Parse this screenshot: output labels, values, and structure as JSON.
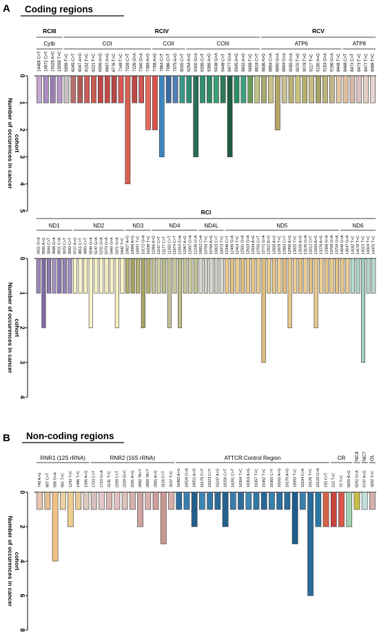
{
  "figure": {
    "panel_a_letter": "A",
    "panel_a_title": "Coding regions",
    "panel_b_letter": "B",
    "panel_b_title": "Non-coding regions",
    "ylabel_line1": "Number of occurences in cancer",
    "ylabel_line2": "cohort"
  },
  "chart_data": [
    {
      "type": "bar",
      "title": "Coding regions",
      "subtitle": "RCIII, RCIV, RCV",
      "ylabel": "Number of occurences in cancer cohort",
      "ylim": [
        0,
        5
      ],
      "y_direction": "down",
      "yticks": [
        0,
        1,
        2,
        3,
        4,
        5
      ],
      "complexes": [
        {
          "name": "RCIII",
          "from": 0,
          "to": 4
        },
        {
          "name": "RCIV",
          "from": 4,
          "to": 33
        },
        {
          "name": "RCV",
          "from": 33,
          "to": 50
        }
      ],
      "genes": [
        {
          "name": "Cytb",
          "from": 0,
          "to": 4
        },
        {
          "name": "COI",
          "from": 4,
          "to": 17
        },
        {
          "name": "COII",
          "from": 17,
          "to": 22
        },
        {
          "name": "COIII",
          "from": 22,
          "to": 33
        },
        {
          "name": "ATP6",
          "from": 33,
          "to": 45
        },
        {
          "name": "ATP8",
          "from": 45,
          "to": 50
        }
      ],
      "categories": [
        "14466 C>T",
        "14872 C>T",
        "15028 A>C",
        "15098 T>C",
        "5999 T>C",
        "6045 C>T",
        "6047 A>G",
        "6152 T>C",
        "6221 T>C",
        "6599 A>G",
        "6647 A>G",
        "6776 T>C",
        "7148 T>C",
        "7028 C>T",
        "7226 G>A",
        "7340 G>A",
        "7389 A>G",
        "7768 A>G",
        "7864 C>T",
        "7986 C>T",
        "7975 A>G",
        "8005 C>T",
        "9254 A>G",
        "9300 G>A",
        "9335 C>T",
        "9389 A>G",
        "9438 G>A",
        "9448 C>T",
        "9477 G>A",
        "9545 A>G",
        "9632 A>G",
        "9698 T>C",
        "8818 C>T",
        "8836 A>G",
        "8894 C>A",
        "8950 G>A",
        "8994 G>A",
        "9055 G>A",
        "9070 T>G",
        "9078 T>G",
        "9117 T>C",
        "9150 A>G",
        "9163 G>A",
        "9196 G>A",
        "8448 T>C",
        "8468 C>T",
        "8472 C>T",
        "8473 T>C",
        "8477 T>C",
        "8488 T>C"
      ],
      "values": [
        1,
        1,
        1,
        1,
        1,
        1,
        1,
        1,
        1,
        1,
        1,
        1,
        1,
        4,
        1,
        1,
        2,
        2,
        3,
        1,
        1,
        1,
        1,
        3,
        1,
        1,
        1,
        1,
        3,
        1,
        1,
        1,
        1,
        1,
        1,
        2,
        1,
        1,
        1,
        1,
        1,
        1,
        1,
        1,
        1,
        1,
        1,
        1,
        1,
        1
      ],
      "colors": [
        "#c5a6d1",
        "#a98bc0",
        "#9b7fb3",
        "#b595c4",
        "#c9c2c2",
        "#b76f6a",
        "#ad5c57",
        "#cc5c58",
        "#c75e55",
        "#c04545",
        "#c44a4a",
        "#b34747",
        "#d95656",
        "#d86252",
        "#c04848",
        "#cc5655",
        "#e26c5f",
        "#d8504a",
        "#3d86bf",
        "#3a6aa0",
        "#5080b8",
        "#3a9a88",
        "#2e8c76",
        "#2a6e56",
        "#31916f",
        "#2f8a65",
        "#3aa075",
        "#2c7a5a",
        "#1f5c42",
        "#2b8e66",
        "#3da07a",
        "#6b9a5a",
        "#bfc48a",
        "#a8a873",
        "#c7c287",
        "#b3a567",
        "#c7c090",
        "#b8b07a",
        "#c8c27d",
        "#b6ae6f",
        "#c5bb82",
        "#a9a168",
        "#bcb47a",
        "#c0b68a",
        "#e2c6a8",
        "#e0c0a0",
        "#d6b8a8",
        "#d9c2c0",
        "#e4cfc7",
        "#e6d6d0"
      ]
    },
    {
      "type": "bar",
      "subtitle": "RCI",
      "ylabel": "Number of occurences in cancer cohort",
      "ylim": [
        0,
        4
      ],
      "y_direction": "down",
      "yticks": [
        0,
        1,
        2,
        3,
        4
      ],
      "complexes": [
        {
          "name": "RCI",
          "from": 0,
          "to": 65
        }
      ],
      "genes": [
        {
          "name": "ND1",
          "from": 0,
          "to": 7
        },
        {
          "name": "ND2",
          "from": 7,
          "to": 17
        },
        {
          "name": "ND3",
          "from": 17,
          "to": 22
        },
        {
          "name": "ND4",
          "from": 22,
          "to": 31
        },
        {
          "name": "ND4L",
          "from": 31,
          "to": 36
        },
        {
          "name": "ND5",
          "from": 36,
          "to": 58
        },
        {
          "name": "ND6",
          "from": 58,
          "to": 65
        }
      ],
      "categories": [
        "3421 G>A",
        "3505 A>G",
        "3594 C>T",
        "3666 G>A",
        "3921 C>A",
        "3970 C>T",
        "3992 C>T",
        "4727 A>G",
        "4811 C>T",
        "4883 C>T",
        "5046 G>A",
        "5147 G>A",
        "5231 G>A",
        "5273 G>A",
        "5460 G>A",
        "5471 G>A",
        "5442 T>C",
        "10027 A>G",
        "10086 A>G",
        "10097 T>C",
        "10172 G>A",
        "10238 T>C",
        "11084 A>G",
        "11157 C>T",
        "11177 C>T",
        "11332 C>T",
        "11674 C>T",
        "11914 G>A",
        "11947 A>G",
        "12007 G>A",
        "12236 G>A",
        "10652 C>A",
        "10705 T>C",
        "10750 A>G",
        "10823 C>T",
        "10873 T>C",
        "12346 C>T",
        "12406 G>A",
        "12414 T>C",
        "12501 G>A",
        "12618 G>A",
        "12634 A>G",
        "12705 C>T",
        "12771 G>A",
        "12822 A>G",
        "12850 A>G",
        "12879 T>C",
        "12882 C>T",
        "12950 A>G",
        "13020 T>C",
        "13105 A>G",
        "13135 G>A",
        "13212 C>T",
        "13263 A>G",
        "13276 A>G",
        "13368 G>A",
        "13708 G>A",
        "13759 G>A",
        "14040 G>A",
        "14047 G>A",
        "14182 T>C",
        "14178 T>C",
        "14215 T>C",
        "14324 T>C",
        "14470 T>C"
      ],
      "values": [
        1,
        2,
        1,
        1,
        1,
        1,
        1,
        1,
        1,
        1,
        2,
        1,
        1,
        1,
        1,
        2,
        1,
        1,
        1,
        1,
        2,
        1,
        1,
        1,
        1,
        2,
        1,
        2,
        1,
        1,
        1,
        1,
        1,
        1,
        1,
        1,
        1,
        1,
        1,
        1,
        1,
        1,
        1,
        3,
        1,
        1,
        1,
        1,
        2,
        1,
        1,
        1,
        1,
        2,
        1,
        1,
        1,
        1,
        1,
        1,
        1,
        1,
        3,
        1,
        1
      ],
      "colors": [
        "#9b89bd",
        "#7e6aa6",
        "#8f7ab3",
        "#a594c4",
        "#8b77b1",
        "#9480b8",
        "#9f8fc0",
        "#f7f2c9",
        "#f8f3cc",
        "#f6f0c0",
        "#f8f3ca",
        "#f5efc1",
        "#f9f4cd",
        "#f4edbd",
        "#f7f1c6",
        "#f6efc2",
        "#f8f3c9",
        "#b2ad6c",
        "#a5a05e",
        "#b8b477",
        "#aaa565",
        "#b3ae70",
        "#c6c79a",
        "#cbcca4",
        "#bdbf8f",
        "#c4c497",
        "#c8c99e",
        "#bfc08f",
        "#c5c598",
        "#cacba2",
        "#c2c293",
        "#d7d7d0",
        "#cfd0c6",
        "#d5d5c9",
        "#cccdc3",
        "#dadad1",
        "#e7c98d",
        "#e3c285",
        "#ebcf96",
        "#e0be7f",
        "#e8cb90",
        "#e5c588",
        "#ebd098",
        "#dfbc7c",
        "#e9cd92",
        "#e4c487",
        "#eccf95",
        "#e2c083",
        "#e6c78a",
        "#eacd93",
        "#e3c286",
        "#e9ce94",
        "#e1bf80",
        "#e7c98e",
        "#ecd299",
        "#e4c489",
        "#e8ca8f",
        "#e2c184",
        "#e6c68b",
        "#ebcf96",
        "#b8d9cc",
        "#aed3c4",
        "#a7cfbf",
        "#b3d6c8",
        "#bcdccf"
      ]
    },
    {
      "type": "bar",
      "title": "Non-coding regions",
      "ylabel": "Number of occurences in cancer cohort",
      "ylim": [
        0,
        8
      ],
      "y_direction": "down",
      "yticks": [
        0,
        2,
        4,
        6,
        8
      ],
      "groups": [
        {
          "name": "RNR1 (12S rRNA)",
          "from": 0,
          "to": 7
        },
        {
          "name": "RNR2 (16S rRNA)",
          "from": 7,
          "to": 18
        },
        {
          "name": "ATTCR:Control Region",
          "from": 18,
          "to": 38
        },
        {
          "name": "CR",
          "from": 38,
          "to": 41
        },
        {
          "name": "NC4",
          "from": 41,
          "to": 42
        },
        {
          "name": "NC7",
          "from": 42,
          "to": 43
        },
        {
          "name": "OL",
          "from": 43,
          "to": 44
        }
      ],
      "categories": [
        "748 A>G",
        "887 C>T",
        "930 G>A",
        "961 T>C",
        "1243 T>C",
        "1486 T>C",
        "1585 A>G",
        "1703 C>T",
        "1719 G>A",
        "2141 T>C",
        "2259 C>T",
        "2259 G>C",
        "2581 A>G",
        "2882 TA>T",
        "2800 TA>T",
        "2905 A>G",
        "3118 C>T",
        "3197 T>C",
        "16482 A>G",
        "16526 G>A",
        "16051 A>G",
        "16179 C>T",
        "16223 C>T",
        "16247 A>G",
        "16256 C>T",
        "16291 C>T",
        "16304 T>C",
        "16316 A>G",
        "16357 T>C",
        "16362 T>C",
        "16365 C>T",
        "16162 A>G",
        "16170 A>G",
        "16093 T>C",
        "16104 C>A",
        "16126 T>C",
        "16129 G>A",
        "150 C>T",
        "152 T>C",
        "72 T>C",
        "5655 A>G",
        "8292 G>A",
        "5747 A>G",
        "3202 T>C"
      ],
      "values": [
        1,
        1,
        4,
        1,
        2,
        1,
        1,
        1,
        1,
        1,
        1,
        1,
        1,
        2,
        1,
        1,
        3,
        1,
        1,
        1,
        2,
        1,
        1,
        1,
        2,
        1,
        1,
        1,
        1,
        1,
        1,
        1,
        1,
        3,
        1,
        6,
        2,
        2,
        2,
        2,
        2,
        1,
        1,
        1
      ],
      "colors": [
        "#e8c6b0",
        "#e3bf96",
        "#f0c287",
        "#ead1a4",
        "#eecf92",
        "#e8cc97",
        "#ddc8bd",
        "#d8bfbe",
        "#e4c8c9",
        "#d9b6b3",
        "#e2c1c2",
        "#dcc0bc",
        "#d7b3b0",
        "#cfa3a0",
        "#d8b2ae",
        "#cf9e9a",
        "#c99792",
        "#d6b1aa",
        "#2f6e9e",
        "#3a7fae",
        "#245f8c",
        "#3f86b5",
        "#3479a9",
        "#2b6a99",
        "#24628f",
        "#3a7fac",
        "#2d6d9c",
        "#3f87b4",
        "#3177a6",
        "#28679a",
        "#3780ae",
        "#2d6fa0",
        "#2a6b9a",
        "#1f5c8b",
        "#3a80ae",
        "#2a6c9c",
        "#2c78a4",
        "#d46448",
        "#c7453e",
        "#d95a4a",
        "#a3d3b2",
        "#c8be4a",
        "#c3e0dc",
        "#d0b0aa"
      ]
    }
  ]
}
